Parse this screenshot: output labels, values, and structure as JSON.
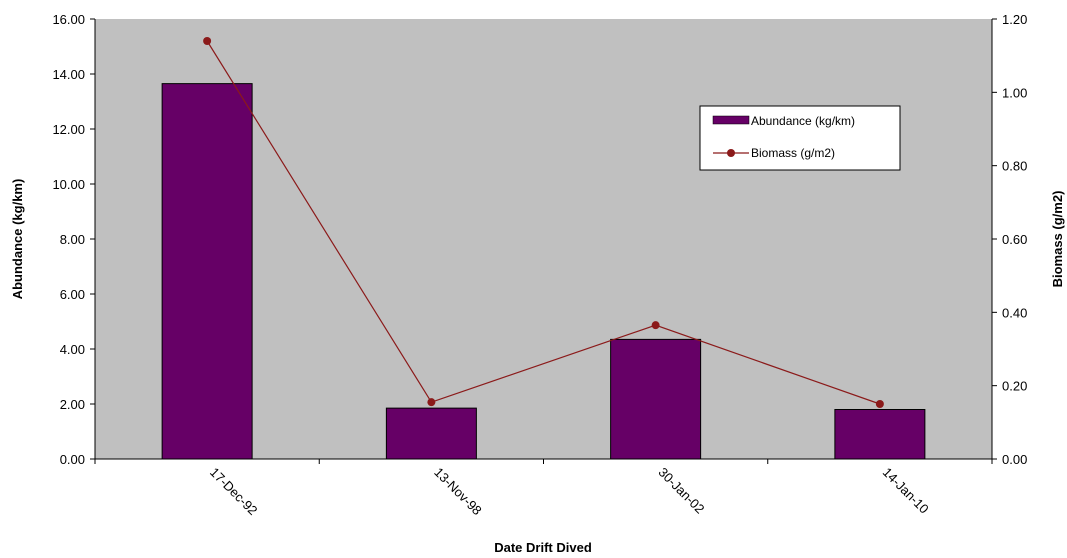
{
  "chart_data": {
    "type": "bar",
    "categories": [
      "17-Dec-92",
      "13-Nov-98",
      "30-Jan-02",
      "14-Jan-10"
    ],
    "series": [
      {
        "name": "Abundance (kg/km)",
        "type": "bar",
        "axis": "left",
        "color": "#660066",
        "values": [
          13.65,
          1.85,
          4.35,
          1.8
        ]
      },
      {
        "name": "Biomass (g/m2)",
        "type": "line",
        "axis": "right",
        "color": "#8b1a1a",
        "values": [
          1.14,
          0.155,
          0.365,
          0.15
        ]
      }
    ],
    "xlabel": "Date Drift Dived",
    "ylabel": "Abundance (kg/km)",
    "y2label": "Biomass (g/m2)",
    "ylim": [
      0,
      16
    ],
    "y2lim": [
      0,
      1.2
    ],
    "yticks": [
      "0.00",
      "2.00",
      "4.00",
      "6.00",
      "8.00",
      "10.00",
      "12.00",
      "14.00",
      "16.00"
    ],
    "y2ticks": [
      "0.00",
      "0.20",
      "0.40",
      "0.60",
      "0.80",
      "1.00",
      "1.20"
    ],
    "plot_background": "#c0c0c0",
    "grid": false,
    "legend_position": "top-right"
  }
}
